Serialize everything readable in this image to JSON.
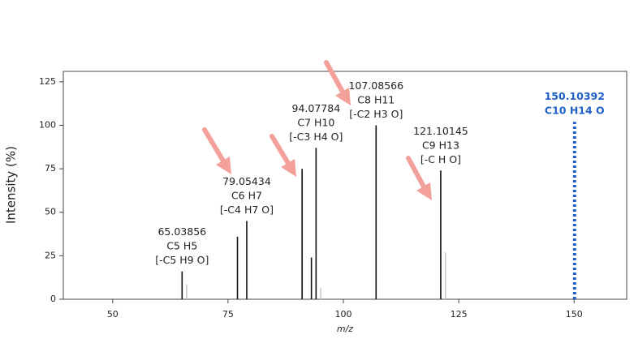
{
  "chart_data": {
    "type": "spectrum",
    "xlabel": "m/z",
    "ylabel": "Intensity (%)",
    "xlim": [
      39.3,
      161.4
    ],
    "ylim": [
      0,
      131
    ],
    "xticks": [
      50,
      75,
      100,
      125,
      150
    ],
    "yticks": [
      0,
      25,
      50,
      75,
      100,
      125
    ],
    "series": [
      {
        "color": "#111111",
        "linestyle": "solid",
        "x": [
          65.03856,
          77.04,
          79.05434,
          91.05,
          93.07,
          94.07784,
          107.08566,
          121.10145
        ],
        "values": [
          16,
          36,
          45,
          75,
          24,
          87,
          100,
          74
        ],
        "annotations": [
          [
            "C5 H5",
            "[-C5 H9 O]"
          ],
          null,
          [
            "C6 H7",
            "[-C4 H7 O]"
          ],
          null,
          null,
          [
            "C7 H10",
            "[-C3 H4 O]"
          ],
          [
            "C8 H11",
            "[-C2 H3 O]"
          ],
          [
            "C9 H13",
            "[-C H O]"
          ]
        ]
      },
      {
        "color": "#c8c8c8",
        "linestyle": "solid",
        "x": [
          66.04,
          95.08,
          122.1
        ],
        "values": [
          8.4,
          6.5,
          27
        ],
        "annotations": [
          null,
          null,
          null
        ]
      },
      {
        "color": "#1f5fc8",
        "linestyle": "dotted",
        "x": [
          150.10392
        ],
        "values": [
          102
        ],
        "annotations": [
          [
            "C10 H14 O"
          ]
        ]
      }
    ]
  }
}
